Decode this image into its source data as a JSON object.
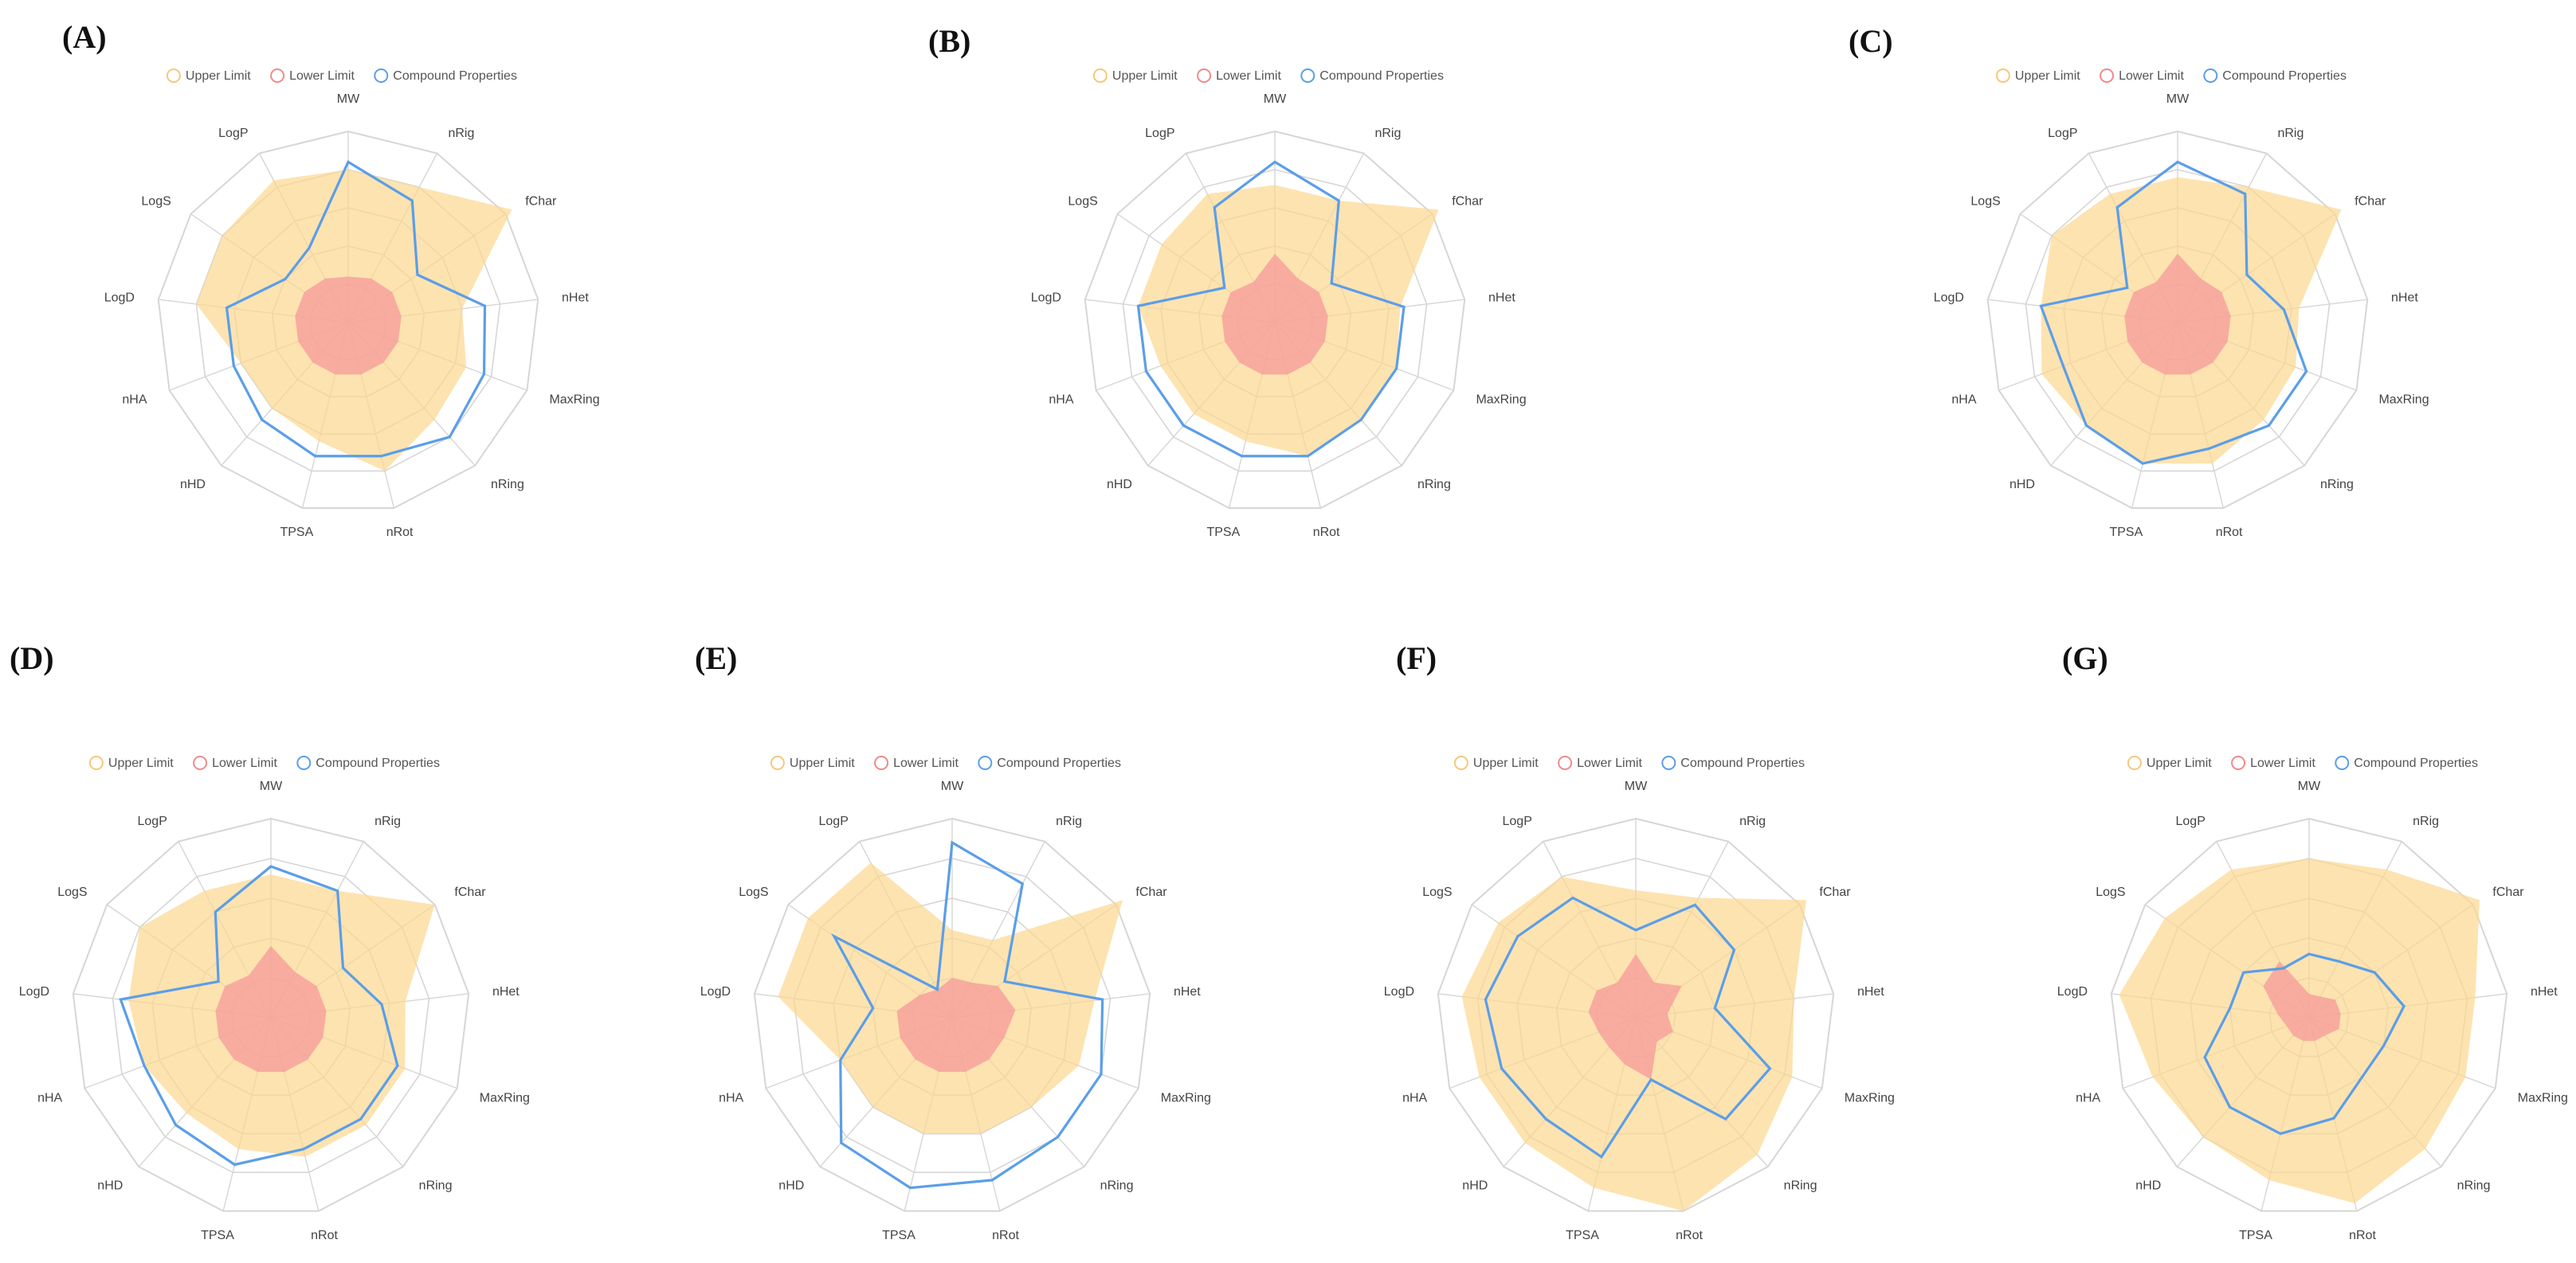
{
  "figure": {
    "axes": [
      "MW",
      "nRig",
      "fChar",
      "nHet",
      "MaxRing",
      "nRing",
      "nRot",
      "TPSA",
      "nHD",
      "nHA",
      "LogD",
      "LogS",
      "LogP"
    ],
    "legend": [
      "Upper Limit",
      "Lower Limit",
      "Compound Properties"
    ],
    "colors": {
      "upper_fill": "#fcd78f",
      "upper_stroke": "#f5c87a",
      "lower_fill": "#f59a9a",
      "lower_stroke": "#f08a8a",
      "compound_stroke": "#5b9ee8",
      "grid": "#d6d6d6",
      "text": "#444444"
    }
  },
  "chart_data": [
    {
      "type": "radar",
      "panel": "(A)",
      "axes": [
        "MW",
        "nRig",
        "fChar",
        "nHet",
        "MaxRing",
        "nRing",
        "nRot",
        "TPSA",
        "nHD",
        "nHA",
        "LogD",
        "LogS",
        "LogP"
      ],
      "range": [
        0,
        5
      ],
      "series": [
        {
          "name": "Upper Limit",
          "values": [
            4.0,
            4.0,
            5.2,
            3.0,
            3.3,
            3.4,
            4.0,
            3.2,
            3.0,
            3.0,
            4.0,
            4.0,
            4.2
          ]
        },
        {
          "name": "Lower Limit",
          "values": [
            1.2,
            1.3,
            1.4,
            1.4,
            1.4,
            1.4,
            1.4,
            1.4,
            1.4,
            1.4,
            1.4,
            1.4,
            1.3
          ]
        },
        {
          "name": "Compound Properties",
          "values": [
            4.2,
            3.6,
            2.2,
            3.6,
            3.8,
            4.0,
            3.6,
            3.6,
            3.4,
            3.2,
            3.2,
            2.0,
            2.2
          ]
        }
      ]
    },
    {
      "type": "radar",
      "panel": "(B)",
      "axes": [
        "MW",
        "nRig",
        "fChar",
        "nHet",
        "MaxRing",
        "nRing",
        "nRot",
        "TPSA",
        "nHD",
        "nHA",
        "LogD",
        "LogS",
        "LogP"
      ],
      "range": [
        0,
        5
      ],
      "series": [
        {
          "name": "Upper Limit",
          "values": [
            3.6,
            3.6,
            5.2,
            3.3,
            3.4,
            3.4,
            3.6,
            3.2,
            3.2,
            3.2,
            3.6,
            3.6,
            3.8
          ]
        },
        {
          "name": "Lower Limit",
          "values": [
            1.8,
            1.3,
            1.4,
            1.4,
            1.4,
            1.4,
            1.4,
            1.4,
            1.4,
            1.4,
            1.4,
            1.4,
            1.2
          ]
        },
        {
          "name": "Compound Properties",
          "values": [
            4.2,
            3.6,
            1.8,
            3.4,
            3.4,
            3.4,
            3.6,
            3.6,
            3.6,
            3.6,
            3.6,
            1.6,
            3.4
          ]
        }
      ]
    },
    {
      "type": "radar",
      "panel": "(C)",
      "axes": [
        "MW",
        "nRig",
        "fChar",
        "nHet",
        "MaxRing",
        "nRing",
        "nRot",
        "TPSA",
        "nHD",
        "nHA",
        "LogD",
        "LogS",
        "LogP"
      ],
      "range": [
        0,
        5
      ],
      "series": [
        {
          "name": "Upper Limit",
          "values": [
            3.8,
            4.0,
            5.2,
            3.2,
            3.3,
            3.4,
            3.8,
            3.8,
            3.6,
            3.8,
            3.6,
            4.0,
            3.8
          ]
        },
        {
          "name": "Lower Limit",
          "values": [
            1.8,
            1.3,
            1.4,
            1.4,
            1.4,
            1.4,
            1.4,
            1.4,
            1.4,
            1.4,
            1.4,
            1.4,
            1.2
          ]
        },
        {
          "name": "Compound Properties",
          "values": [
            4.2,
            3.8,
            2.2,
            2.8,
            3.6,
            3.6,
            3.4,
            3.8,
            3.6,
            3.2,
            3.6,
            1.6,
            3.4
          ]
        }
      ]
    },
    {
      "type": "radar",
      "panel": "(D)",
      "axes": [
        "MW",
        "nRig",
        "fChar",
        "nHet",
        "MaxRing",
        "nRing",
        "nRot",
        "TPSA",
        "nHD",
        "nHA",
        "LogD",
        "LogS",
        "LogP"
      ],
      "range": [
        0,
        5
      ],
      "series": [
        {
          "name": "Upper Limit",
          "values": [
            3.6,
            3.6,
            5.0,
            3.4,
            3.6,
            3.6,
            3.6,
            3.4,
            3.2,
            3.4,
            3.6,
            4.0,
            3.6
          ]
        },
        {
          "name": "Lower Limit",
          "values": [
            1.8,
            1.3,
            1.4,
            1.4,
            1.4,
            1.4,
            1.4,
            1.4,
            1.4,
            1.4,
            1.4,
            1.4,
            1.2
          ]
        },
        {
          "name": "Compound Properties",
          "values": [
            3.8,
            3.6,
            2.2,
            2.8,
            3.4,
            3.4,
            3.4,
            3.8,
            3.6,
            3.4,
            3.8,
            1.6,
            3.0
          ]
        }
      ]
    },
    {
      "type": "radar",
      "panel": "(E)",
      "axes": [
        "MW",
        "nRig",
        "fChar",
        "nHet",
        "MaxRing",
        "nRing",
        "nRot",
        "TPSA",
        "nHD",
        "nHA",
        "LogD",
        "LogS",
        "LogP"
      ],
      "range": [
        0,
        5
      ],
      "series": [
        {
          "name": "Upper Limit",
          "values": [
            2.2,
            2.2,
            5.2,
            3.6,
            3.4,
            3.0,
            3.0,
            3.0,
            3.0,
            3.0,
            4.4,
            4.4,
            4.4
          ]
        },
        {
          "name": "Lower Limit",
          "values": [
            1.0,
            1.0,
            1.4,
            1.6,
            1.4,
            1.4,
            1.4,
            1.4,
            1.4,
            1.4,
            1.4,
            1.0,
            0.8
          ]
        },
        {
          "name": "Compound Properties",
          "values": [
            4.4,
            3.8,
            1.6,
            3.8,
            4.0,
            4.0,
            4.2,
            4.4,
            4.2,
            3.0,
            2.0,
            3.6,
            0.8
          ]
        }
      ]
    },
    {
      "type": "radar",
      "panel": "(F)",
      "axes": [
        "MW",
        "nRig",
        "fChar",
        "nHet",
        "MaxRing",
        "nRing",
        "nRot",
        "TPSA",
        "nHD",
        "nHA",
        "LogD",
        "LogS",
        "LogP"
      ],
      "range": [
        0,
        5
      ],
      "series": [
        {
          "name": "Upper Limit",
          "values": [
            3.2,
            3.4,
            5.2,
            4.0,
            4.2,
            4.6,
            5.0,
            4.4,
            4.2,
            4.2,
            4.4,
            4.2,
            4.0
          ]
        },
        {
          "name": "Lower Limit",
          "values": [
            1.6,
            1.0,
            1.4,
            0.8,
            1.0,
            0.8,
            1.6,
            1.2,
            1.0,
            1.0,
            1.2,
            1.2,
            1.0
          ]
        },
        {
          "name": "Compound Properties",
          "values": [
            2.2,
            3.2,
            3.0,
            2.0,
            3.6,
            3.4,
            1.6,
            3.6,
            3.4,
            3.6,
            3.8,
            3.6,
            3.4
          ]
        }
      ]
    },
    {
      "type": "radar",
      "panel": "(G)",
      "axes": [
        "MW",
        "nRig",
        "fChar",
        "nHet",
        "MaxRing",
        "nRing",
        "nRot",
        "TPSA",
        "nHD",
        "nHA",
        "LogD",
        "LogS",
        "LogP"
      ],
      "range": [
        0,
        5
      ],
      "series": [
        {
          "name": "Upper Limit",
          "values": [
            4.0,
            4.2,
            5.2,
            4.2,
            4.2,
            4.4,
            4.8,
            4.2,
            4.0,
            4.2,
            4.8,
            4.4,
            4.2
          ]
        },
        {
          "name": "Lower Limit",
          "values": [
            0.6,
            0.6,
            0.8,
            0.8,
            0.8,
            0.6,
            0.6,
            0.6,
            0.6,
            0.6,
            0.8,
            1.4,
            1.6
          ]
        },
        {
          "name": "Compound Properties",
          "values": [
            1.6,
            1.6,
            2.0,
            2.4,
            2.0,
            2.0,
            2.6,
            3.0,
            3.0,
            2.8,
            2.0,
            2.0,
            1.4
          ]
        }
      ]
    }
  ]
}
